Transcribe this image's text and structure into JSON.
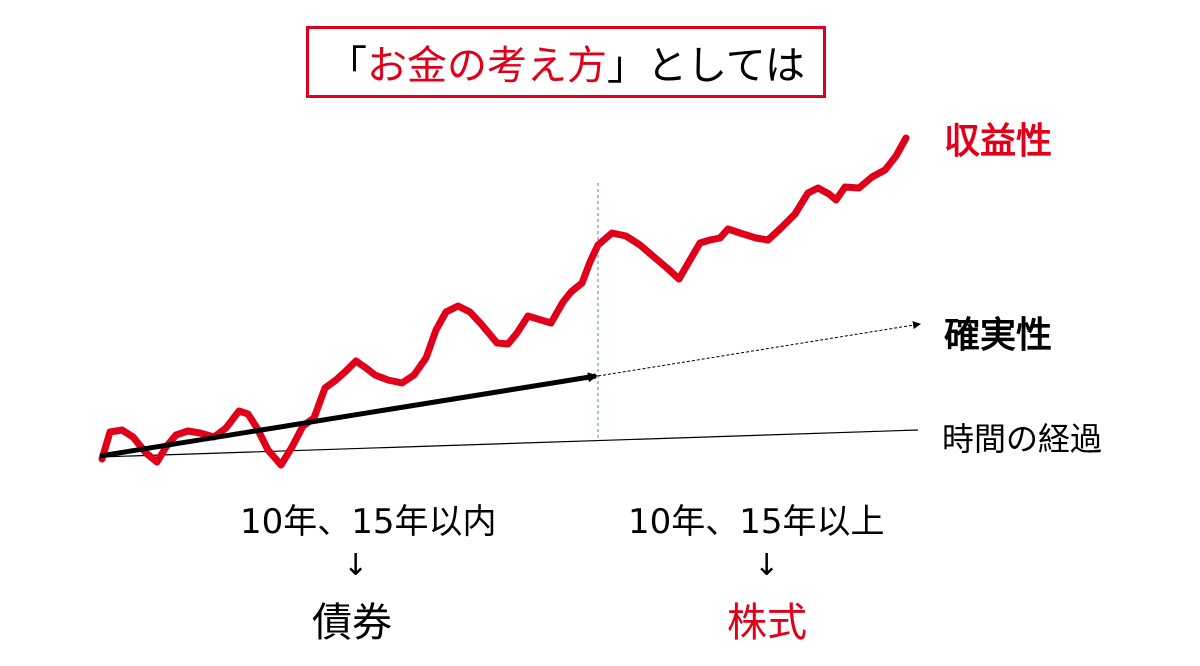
{
  "title": {
    "open_bracket": "「",
    "highlight": "お金の考え方",
    "close_bracket": "」",
    "suffix": "としては"
  },
  "labels": {
    "profitability": "収益性",
    "certainty": "確実性",
    "time_elapsed": "時間の経過"
  },
  "left_column": {
    "period": "10年、15年以内",
    "arrow": "↓",
    "asset": "債券"
  },
  "right_column": {
    "period": "10年、15年以上",
    "arrow": "↓",
    "asset": "株式"
  },
  "colors": {
    "accent_red": "#e0001a",
    "black": "#000000",
    "divider_blue": "#5b9bd5"
  }
}
